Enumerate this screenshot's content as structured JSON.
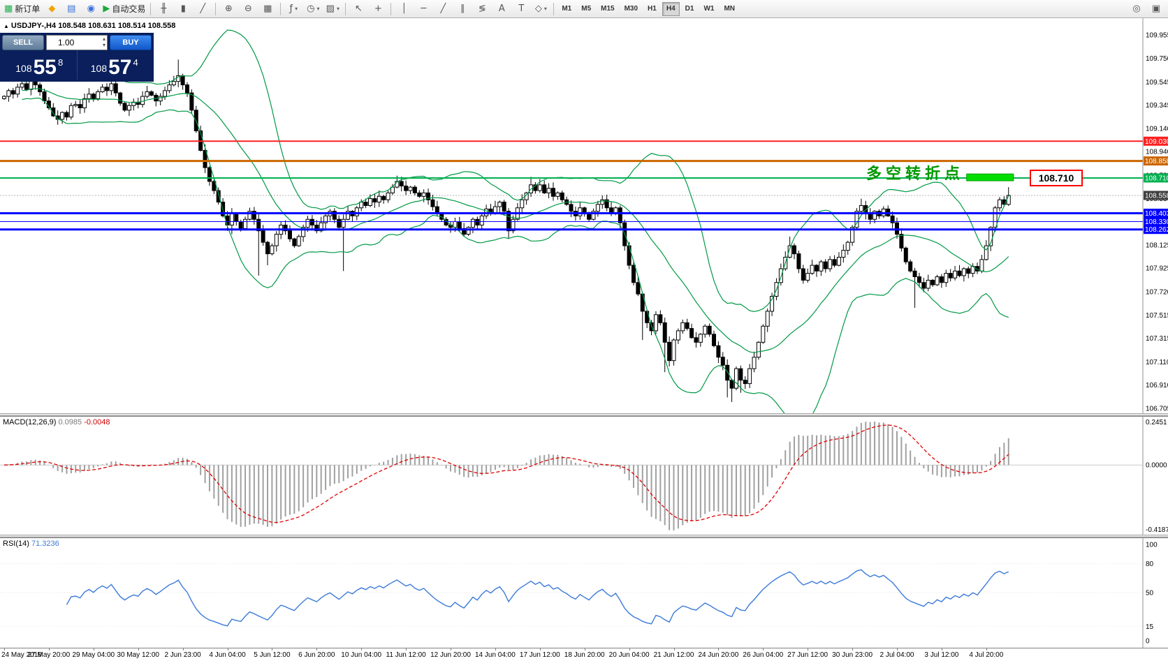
{
  "toolbar": {
    "items": [
      {
        "name": "new-order-button",
        "glyph": "▦",
        "glyph_color": "#1fae4b",
        "label": "新订单"
      },
      {
        "name": "chart-profiles-button",
        "glyph": "◆",
        "glyph_color": "#f0a500"
      },
      {
        "name": "market-watch-button",
        "glyph": "▤",
        "glyph_color": "#3a6fd8"
      },
      {
        "name": "data-window-button",
        "glyph": "◉",
        "glyph_color": "#3a6fd8"
      },
      {
        "name": "auto-trading-button",
        "glyph": "▶",
        "glyph_color": "#17a83b",
        "label": "自动交易"
      },
      {
        "type": "sep"
      },
      {
        "name": "bar-chart-button",
        "glyph": "╫"
      },
      {
        "name": "candlestick-chart-button",
        "glyph": "▮"
      },
      {
        "name": "line-chart-button",
        "glyph": "╱"
      },
      {
        "type": "sep"
      },
      {
        "name": "zoom-in-button",
        "glyph": "⊕"
      },
      {
        "name": "zoom-out-button",
        "glyph": "⊖"
      },
      {
        "name": "tile-windows-button",
        "glyph": "▦"
      },
      {
        "type": "sep"
      },
      {
        "name": "indicators-button",
        "glyph": "ƒ",
        "caret": true
      },
      {
        "name": "periods-button",
        "glyph": "◷",
        "caret": true
      },
      {
        "name": "templates-button",
        "glyph": "▨",
        "caret": true
      },
      {
        "type": "sep"
      },
      {
        "name": "cursor-button",
        "glyph": "↖"
      },
      {
        "name": "crosshair-button",
        "glyph": "+"
      },
      {
        "type": "sep"
      },
      {
        "name": "vertical-line-button",
        "glyph": "│"
      },
      {
        "name": "horizontal-line-button",
        "glyph": "─"
      },
      {
        "name": "trendline-button",
        "glyph": "╱"
      },
      {
        "name": "channel-button",
        "glyph": "∥"
      },
      {
        "name": "fibonacci-button",
        "glyph": "≶"
      },
      {
        "name": "text-button",
        "glyph": "A"
      },
      {
        "name": "text-label-button",
        "glyph": "T"
      },
      {
        "name": "shapes-button",
        "glyph": "◇",
        "caret": true
      }
    ],
    "timeframes": {
      "items": [
        "M1",
        "M5",
        "M15",
        "M30",
        "H1",
        "H4",
        "D1",
        "W1",
        "MN"
      ],
      "active": "H4"
    },
    "right_items": [
      {
        "name": "search-button",
        "glyph": "◎"
      },
      {
        "name": "full-screen-button",
        "glyph": "▣"
      }
    ]
  },
  "trade_panel": {
    "sell_label": "SELL",
    "buy_label": "BUY",
    "volume": "1.00",
    "sell_prefix": "108",
    "sell_main": "55",
    "sell_sup": "8",
    "buy_prefix": "108",
    "buy_main": "57",
    "buy_sup": "4"
  },
  "chart": {
    "symbol_header": {
      "symbol": "USDJPY-,H4",
      "ohlc": "108.548 108.631 108.514 108.558"
    },
    "annotation": {
      "text": "多空转折点",
      "color": "#009900"
    },
    "callout": {
      "text": "108.710",
      "border_color": "#ff0000"
    },
    "levels": [
      {
        "price": 109.03,
        "label": "109.030",
        "color": "#ff2020",
        "width": 2
      },
      {
        "price": 108.858,
        "label": "108.858",
        "color": "#cc6600",
        "width": 3
      },
      {
        "price": 108.71,
        "label": "108.710",
        "color": "#00b050",
        "width": 2
      },
      {
        "price": 108.403,
        "label": "108.403",
        "color": "#0000ff",
        "width": 3
      },
      {
        "price": 108.33,
        "label": "108.330",
        "color": "#0000ff",
        "width": 1
      },
      {
        "price": 108.262,
        "label": "108.262",
        "color": "#0000ff",
        "width": 3
      }
    ],
    "current_price": {
      "value": 108.558,
      "label": "108.558",
      "label_bg": "#3f3f3f"
    },
    "green_box": {
      "i_start": 216,
      "i_end": 226.5,
      "price_top": 108.745,
      "price_bottom": 108.685,
      "fill": "#00dd00",
      "stroke": "#00a000"
    },
    "y_axis": [
      "109.955",
      "109.750",
      "109.545",
      "109.345",
      "109.140",
      "108.940",
      "108.735",
      "108.530",
      "108.325",
      "108.125",
      "107.925",
      "107.720",
      "107.515",
      "107.315",
      "107.110",
      "106.910",
      "106.705"
    ],
    "y_axis_range": {
      "max": 109.955,
      "min": 106.705
    },
    "dates": [
      "24 May 2019",
      "27 May 20:00",
      "29 May 04:00",
      "30 May 12:00",
      "2 Jun 23:00",
      "4 Jun 04:00",
      "5 Jun 12:00",
      "6 Jun 20:00",
      "10 Jun 04:00",
      "11 Jun 12:00",
      "12 Jun 20:00",
      "14 Jun 04:00",
      "17 Jun 12:00",
      "18 Jun 20:00",
      "20 Jun 04:00",
      "21 Jun 12:00",
      "24 Jun 20:00",
      "26 Jun 04:00",
      "27 Jun 12:00",
      "30 Jun 23:00",
      "2 Jul 04:00",
      "3 Jul 12:00",
      "4 Jul 20:00"
    ],
    "candles_per_label": 10
  },
  "macd": {
    "name": "MACD(12,26,9)",
    "main": "0.0985",
    "signal": "-0.0048",
    "axis": [
      "0.2451",
      "0.0000",
      "-0.4187"
    ],
    "histogram_color": "#a0a0a0",
    "signal_color": "#e00000"
  },
  "rsi": {
    "name": "RSI(14)",
    "value": "71.3236",
    "axis": [
      {
        "v": 100,
        "label": "100"
      },
      {
        "v": 80,
        "label": "80"
      },
      {
        "v": 50,
        "label": "50"
      },
      {
        "v": 15,
        "label": "15"
      },
      {
        "v": 0,
        "label": "0"
      }
    ],
    "line_color": "#3b7ad9"
  },
  "chart_data": {
    "type": "candlestick",
    "symbol": "USDJPY",
    "timeframe": "H4",
    "bollinger": {
      "period": 20,
      "deviation": 2,
      "color": "#009944"
    },
    "macd_params": {
      "fast": 12,
      "slow": 26,
      "signal": 9
    },
    "rsi_params": {
      "period": 14
    },
    "first_open": 109.4,
    "closes": [
      109.42,
      109.47,
      109.44,
      109.5,
      109.53,
      109.48,
      109.55,
      109.52,
      109.46,
      109.38,
      109.32,
      109.25,
      109.22,
      109.28,
      109.24,
      109.34,
      109.35,
      109.32,
      109.4,
      109.44,
      109.4,
      109.46,
      109.5,
      109.47,
      109.53,
      109.45,
      109.36,
      109.3,
      109.34,
      109.37,
      109.35,
      109.42,
      109.46,
      109.43,
      109.38,
      109.42,
      109.47,
      109.52,
      109.55,
      109.6,
      109.52,
      109.45,
      109.3,
      109.12,
      108.95,
      108.8,
      108.68,
      108.6,
      108.5,
      108.38,
      108.3,
      108.4,
      108.33,
      108.27,
      108.35,
      108.42,
      108.35,
      108.25,
      108.15,
      108.05,
      108.12,
      108.22,
      108.3,
      108.25,
      108.18,
      108.12,
      108.2,
      108.28,
      108.35,
      108.3,
      108.25,
      108.32,
      108.38,
      108.42,
      108.35,
      108.28,
      108.35,
      108.42,
      108.38,
      108.45,
      108.5,
      108.47,
      108.53,
      108.5,
      108.55,
      108.52,
      108.58,
      108.63,
      108.68,
      108.64,
      108.6,
      108.63,
      108.58,
      108.55,
      108.58,
      108.52,
      108.46,
      108.4,
      108.35,
      108.3,
      108.28,
      108.33,
      108.27,
      108.22,
      108.28,
      108.35,
      108.3,
      108.38,
      108.44,
      108.4,
      108.46,
      108.5,
      108.42,
      108.25,
      108.35,
      108.45,
      108.52,
      108.58,
      108.65,
      108.6,
      108.65,
      108.58,
      108.62,
      108.55,
      108.58,
      108.52,
      108.48,
      108.42,
      108.38,
      108.45,
      108.4,
      108.35,
      108.42,
      108.48,
      108.52,
      108.45,
      108.4,
      108.45,
      108.32,
      108.12,
      107.95,
      107.8,
      107.7,
      107.55,
      107.45,
      107.38,
      107.52,
      107.45,
      107.28,
      107.12,
      107.3,
      107.38,
      107.45,
      107.4,
      107.32,
      107.28,
      107.35,
      107.42,
      107.35,
      107.25,
      107.15,
      107.08,
      106.95,
      106.88,
      107.05,
      106.95,
      106.92,
      107.05,
      107.15,
      107.28,
      107.42,
      107.55,
      107.68,
      107.8,
      107.92,
      108.02,
      108.12,
      108.05,
      107.92,
      107.82,
      107.88,
      107.95,
      107.9,
      107.98,
      107.92,
      108.0,
      107.95,
      108.02,
      108.08,
      108.15,
      108.28,
      108.42,
      108.47,
      108.4,
      108.35,
      108.42,
      108.38,
      108.44,
      108.38,
      108.32,
      108.22,
      108.1,
      107.98,
      107.9,
      107.85,
      107.8,
      107.75,
      107.82,
      107.78,
      107.85,
      107.8,
      107.88,
      107.84,
      107.9,
      107.86,
      107.92,
      107.88,
      107.94,
      107.9,
      108.0,
      108.12,
      108.28,
      108.45,
      108.52,
      108.48,
      108.558
    ],
    "spikes": {
      "6": {
        "high": 109.68
      },
      "24": {
        "high": 109.66
      },
      "39": {
        "high": 109.74
      },
      "51": {
        "low": 108.22
      },
      "57": {
        "low": 107.86
      },
      "59": {
        "low": 107.95
      },
      "76": {
        "low": 107.9
      },
      "88": {
        "high": 108.73
      },
      "113": {
        "low": 108.18
      },
      "118": {
        "high": 108.72
      },
      "120": {
        "high": 108.7
      },
      "143": {
        "low": 107.3
      },
      "148": {
        "low": 107.02
      },
      "162": {
        "low": 106.8
      },
      "163": {
        "low": 106.76
      },
      "165": {
        "low": 106.84
      },
      "176": {
        "high": 108.2
      },
      "192": {
        "high": 108.53
      },
      "204": {
        "low": 107.58
      },
      "225": {
        "high": 108.63
      }
    }
  }
}
